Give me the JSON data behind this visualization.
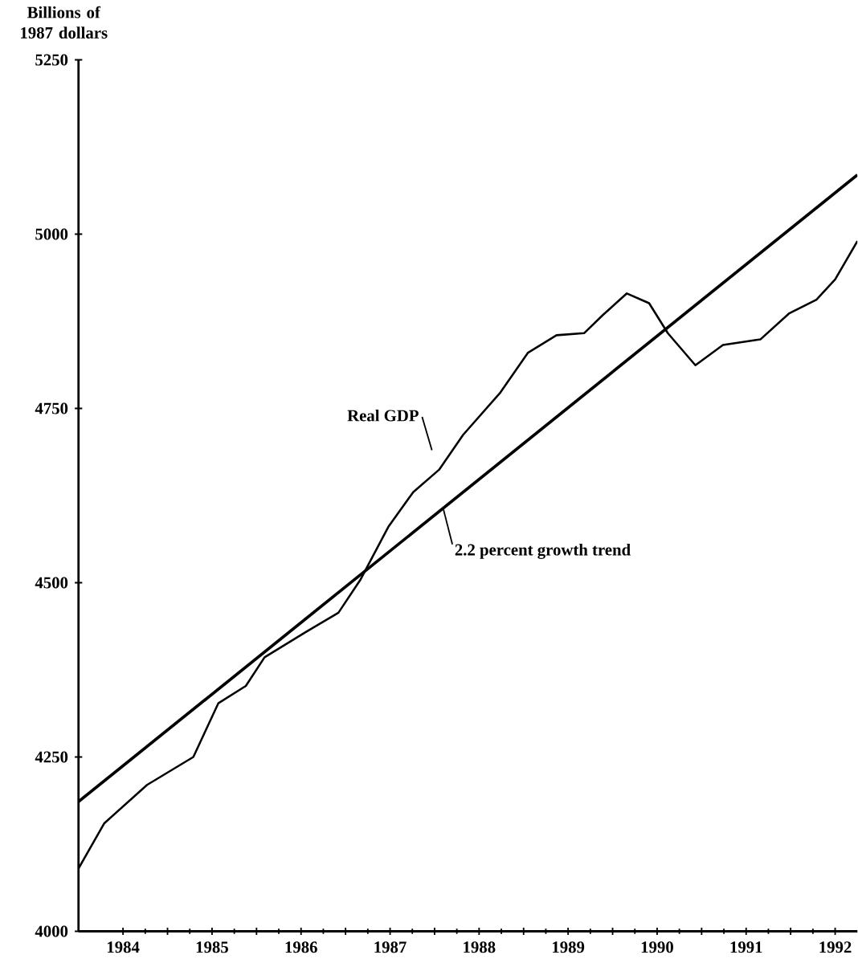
{
  "chart_data": {
    "type": "line",
    "ylabel": "Billions of 1987 dollars",
    "xlim": [
      1984,
      1992.75
    ],
    "ylim": [
      4000,
      5250
    ],
    "yticks": [
      4000,
      4250,
      4500,
      4750,
      5000,
      5250
    ],
    "xticks": [
      {
        "value": 1984.5,
        "label": "1984"
      },
      {
        "value": 1985,
        "label": null
      },
      {
        "value": 1985.5,
        "label": "1985"
      },
      {
        "value": 1986,
        "label": null
      },
      {
        "value": 1986.5,
        "label": "1986"
      },
      {
        "value": 1987,
        "label": null
      },
      {
        "value": 1987.5,
        "label": "1987"
      },
      {
        "value": 1988,
        "label": null
      },
      {
        "value": 1988.5,
        "label": "1988"
      },
      {
        "value": 1989,
        "label": null
      },
      {
        "value": 1989.5,
        "label": "1989"
      },
      {
        "value": 1990,
        "label": null
      },
      {
        "value": 1990.5,
        "label": "1990"
      },
      {
        "value": 1991,
        "label": null
      },
      {
        "value": 1991.5,
        "label": "1991"
      },
      {
        "value": 1992,
        "label": null
      },
      {
        "value": 1992.5,
        "label": "1992"
      }
    ],
    "series": [
      {
        "name": "Real GDP",
        "color": "#000000",
        "x": [
          1984,
          1984.29,
          1984.77,
          1985.29,
          1985.57,
          1985.88,
          1986.09,
          1986.55,
          1986.92,
          1987.17,
          1987.48,
          1987.76,
          1988.05,
          1988.32,
          1988.74,
          1989.05,
          1989.37,
          1989.68,
          1989.89,
          1990.16,
          1990.41,
          1990.62,
          1990.93,
          1991.24,
          1991.66,
          1991.98,
          1992.29,
          1992.5,
          1992.75
        ],
        "values": [
          4090,
          4155,
          4210,
          4250,
          4327,
          4352,
          4393,
          4429,
          4457,
          4505,
          4580,
          4630,
          4662,
          4712,
          4773,
          4830,
          4855,
          4858,
          4884,
          4915,
          4901,
          4858,
          4812,
          4841,
          4849,
          4886,
          4906,
          4935,
          4990
        ]
      },
      {
        "name": "2.2 percent growth trend",
        "color": "#000000",
        "x": [
          1984,
          1992.75
        ],
        "values": [
          4186,
          5085
        ]
      }
    ]
  }
}
